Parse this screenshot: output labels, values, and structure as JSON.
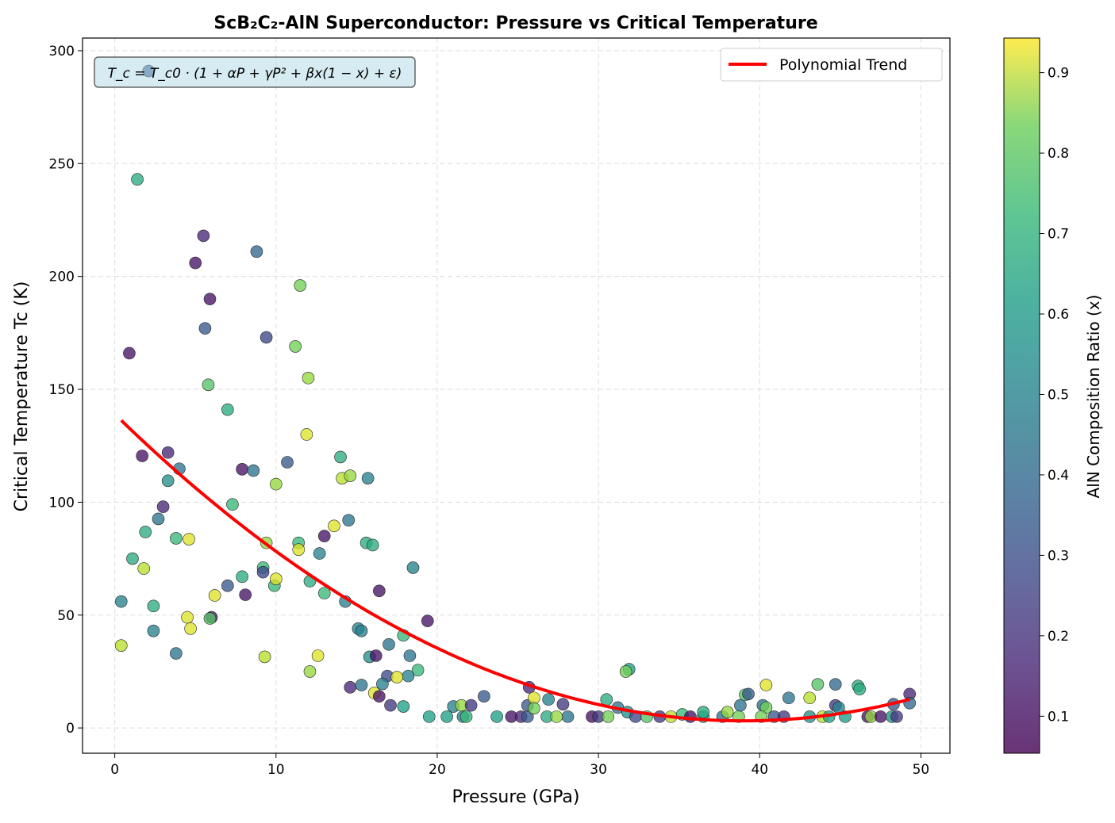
{
  "chart_data": {
    "type": "scatter",
    "title": "ScB₂C₂-AlN Superconductor: Pressure vs Critical Temperature",
    "xlabel": "Pressure (GPa)",
    "ylabel": "Critical Temperature Tc (K)",
    "xlim": [
      -2,
      51.8
    ],
    "ylim": [
      -11.2,
      305.6
    ],
    "xticks": [
      0,
      10,
      20,
      30,
      40,
      50
    ],
    "yticks": [
      0,
      50,
      100,
      150,
      200,
      250,
      300
    ],
    "grid": true,
    "annotation": "T_c = T_c0 · (1 + αP + γP² + βx(1 − x) + ε)",
    "legend": {
      "position": "top-right",
      "entries": [
        "Polynomial Trend"
      ]
    },
    "trend": {
      "name": "Polynomial Trend",
      "color": "#ff0000",
      "coefficients": [
        0.0894,
        -6.97,
        139
      ],
      "x_range": [
        0.4,
        49.3
      ]
    },
    "colorbar": {
      "label": "AlN Composition Ratio (x)",
      "colormap": "viridis",
      "range": [
        0.054,
        0.943
      ],
      "ticks": [
        0.1,
        0.2,
        0.3,
        0.4,
        0.5,
        0.6,
        0.7,
        0.8,
        0.9
      ]
    },
    "points": [
      [
        2.1,
        291,
        0.3
      ],
      [
        1.4,
        243,
        0.6
      ],
      [
        5.5,
        218,
        0.15
      ],
      [
        5.0,
        206,
        0.1
      ],
      [
        8.8,
        211,
        0.35
      ],
      [
        11.5,
        196,
        0.75
      ],
      [
        5.6,
        177,
        0.3
      ],
      [
        5.9,
        190,
        0.1
      ],
      [
        0.9,
        166,
        0.1
      ],
      [
        9.4,
        173,
        0.25
      ],
      [
        11.2,
        169,
        0.75
      ],
      [
        12.0,
        155,
        0.8
      ],
      [
        5.8,
        152,
        0.7
      ],
      [
        7.0,
        141,
        0.6
      ],
      [
        11.9,
        130,
        0.9
      ],
      [
        1.7,
        120.5,
        0.1
      ],
      [
        3.3,
        122,
        0.15
      ],
      [
        7.9,
        114.6,
        0.1
      ],
      [
        4.0,
        114.8,
        0.4
      ],
      [
        8.6,
        114,
        0.4
      ],
      [
        10.7,
        117.7,
        0.3
      ],
      [
        14.0,
        120,
        0.6
      ],
      [
        14.1,
        110.6,
        0.85
      ],
      [
        14.6,
        111.7,
        0.8
      ],
      [
        15.7,
        110.6,
        0.45
      ],
      [
        10.0,
        108,
        0.8
      ],
      [
        3.3,
        109.5,
        0.5
      ],
      [
        3.0,
        98,
        0.15
      ],
      [
        7.3,
        99,
        0.65
      ],
      [
        1.9,
        86.8,
        0.6
      ],
      [
        2.7,
        92.6,
        0.4
      ],
      [
        13.6,
        89.5,
        0.9
      ],
      [
        13.0,
        85,
        0.1
      ],
      [
        14.5,
        92,
        0.4
      ],
      [
        15.6,
        82,
        0.6
      ],
      [
        16.0,
        81,
        0.6
      ],
      [
        3.8,
        84,
        0.65
      ],
      [
        4.6,
        83.6,
        0.9
      ],
      [
        9.4,
        82,
        0.8
      ],
      [
        11.4,
        82,
        0.65
      ],
      [
        11.4,
        79,
        0.9
      ],
      [
        12.7,
        77.3,
        0.45
      ],
      [
        1.1,
        75,
        0.6
      ],
      [
        1.8,
        70.6,
        0.85
      ],
      [
        18.5,
        71,
        0.45
      ],
      [
        9.2,
        71,
        0.65
      ],
      [
        9.2,
        69,
        0.25
      ],
      [
        7.9,
        67,
        0.6
      ],
      [
        7.0,
        63,
        0.3
      ],
      [
        9.9,
        63,
        0.65
      ],
      [
        10.0,
        66,
        0.9
      ],
      [
        12.1,
        65,
        0.6
      ],
      [
        16.4,
        60.7,
        0.1
      ],
      [
        6.2,
        58.7,
        0.9
      ],
      [
        8.1,
        59,
        0.1
      ],
      [
        13.0,
        59.7,
        0.65
      ],
      [
        0.4,
        56,
        0.45
      ],
      [
        14.3,
        56,
        0.45
      ],
      [
        2.4,
        54,
        0.6
      ],
      [
        6.0,
        49,
        0.1
      ],
      [
        5.9,
        48.5,
        0.7
      ],
      [
        4.5,
        49,
        0.9
      ],
      [
        4.7,
        44,
        0.9
      ],
      [
        2.4,
        43,
        0.45
      ],
      [
        19.4,
        47.4,
        0.1
      ],
      [
        15.1,
        44,
        0.45
      ],
      [
        15.3,
        43,
        0.45
      ],
      [
        17.9,
        41,
        0.65
      ],
      [
        0.4,
        36.5,
        0.85
      ],
      [
        3.8,
        33,
        0.4
      ],
      [
        9.3,
        31.5,
        0.85
      ],
      [
        12.6,
        32,
        0.9
      ],
      [
        12.1,
        25,
        0.8
      ],
      [
        15.8,
        31.5,
        0.5
      ],
      [
        16.2,
        32,
        0.1
      ],
      [
        18.3,
        32,
        0.4
      ],
      [
        18.8,
        25.6,
        0.65
      ],
      [
        17.0,
        37,
        0.4
      ],
      [
        16.9,
        23,
        0.25
      ],
      [
        18.2,
        23,
        0.45
      ],
      [
        17.5,
        22.5,
        0.9
      ],
      [
        14.6,
        18,
        0.15
      ],
      [
        15.3,
        19,
        0.4
      ],
      [
        16.6,
        19.5,
        0.45
      ],
      [
        16.1,
        15.5,
        0.9
      ],
      [
        16.4,
        14,
        0.1
      ],
      [
        17.1,
        10,
        0.2
      ],
      [
        17.9,
        9.5,
        0.55
      ],
      [
        19.5,
        5,
        0.55
      ],
      [
        25.7,
        18,
        0.15
      ],
      [
        30.5,
        12.6,
        0.6
      ],
      [
        31.9,
        26,
        0.55
      ],
      [
        31.7,
        25,
        0.75
      ],
      [
        21.0,
        9.5,
        0.45
      ],
      [
        21.5,
        10,
        0.8
      ],
      [
        22.1,
        10,
        0.2
      ],
      [
        22.9,
        14,
        0.3
      ],
      [
        20.6,
        5,
        0.55
      ],
      [
        21.6,
        5,
        0.45
      ],
      [
        21.8,
        5,
        0.65
      ],
      [
        23.7,
        5,
        0.55
      ],
      [
        24.6,
        5,
        0.1
      ],
      [
        25.2,
        5,
        0.15
      ],
      [
        25.6,
        5,
        0.3
      ],
      [
        25.6,
        10,
        0.3
      ],
      [
        26.0,
        13.3,
        0.9
      ],
      [
        26.0,
        8.7,
        0.75
      ],
      [
        26.8,
        5,
        0.6
      ],
      [
        26.9,
        12.6,
        0.45
      ],
      [
        27.8,
        10.5,
        0.2
      ],
      [
        28.1,
        5,
        0.4
      ],
      [
        27.4,
        5,
        0.8
      ],
      [
        29.6,
        5,
        0.1
      ],
      [
        30.0,
        5,
        0.2
      ],
      [
        30.6,
        5,
        0.75
      ],
      [
        31.2,
        9,
        0.4
      ],
      [
        31.8,
        7,
        0.5
      ],
      [
        32.3,
        5,
        0.25
      ],
      [
        33.0,
        5,
        0.7
      ],
      [
        33.8,
        5,
        0.2
      ],
      [
        34.5,
        5,
        0.85
      ],
      [
        35.2,
        6,
        0.65
      ],
      [
        35.7,
        5,
        0.1
      ],
      [
        36.5,
        5,
        0.55
      ],
      [
        36.5,
        7,
        0.6
      ],
      [
        37.7,
        5,
        0.4
      ],
      [
        38.0,
        7,
        0.8
      ],
      [
        38.7,
        5,
        0.75
      ],
      [
        38.8,
        10,
        0.4
      ],
      [
        39.1,
        14.7,
        0.7
      ],
      [
        39.3,
        15,
        0.3
      ],
      [
        40.2,
        10,
        0.4
      ],
      [
        40.4,
        19,
        0.9
      ],
      [
        40.4,
        9,
        0.75
      ],
      [
        40.1,
        5,
        0.75
      ],
      [
        40.9,
        5,
        0.3
      ],
      [
        41.5,
        5,
        0.2
      ],
      [
        41.8,
        13.3,
        0.4
      ],
      [
        43.1,
        5,
        0.5
      ],
      [
        43.1,
        13.3,
        0.85
      ],
      [
        43.6,
        19.3,
        0.7
      ],
      [
        43.9,
        5,
        0.85
      ],
      [
        44.7,
        19.3,
        0.35
      ],
      [
        44.7,
        10,
        0.2
      ],
      [
        44.9,
        9,
        0.45
      ],
      [
        44.3,
        5,
        0.55
      ],
      [
        45.3,
        5,
        0.55
      ],
      [
        46.1,
        18.6,
        0.6
      ],
      [
        46.2,
        17.2,
        0.6
      ],
      [
        46.7,
        5,
        0.1
      ],
      [
        46.9,
        5,
        0.8
      ],
      [
        47.5,
        5,
        0.1
      ],
      [
        48.2,
        5,
        0.5
      ],
      [
        48.3,
        10.5,
        0.3
      ],
      [
        48.5,
        5,
        0.2
      ],
      [
        49.3,
        15,
        0.15
      ],
      [
        49.3,
        11,
        0.35
      ]
    ]
  }
}
